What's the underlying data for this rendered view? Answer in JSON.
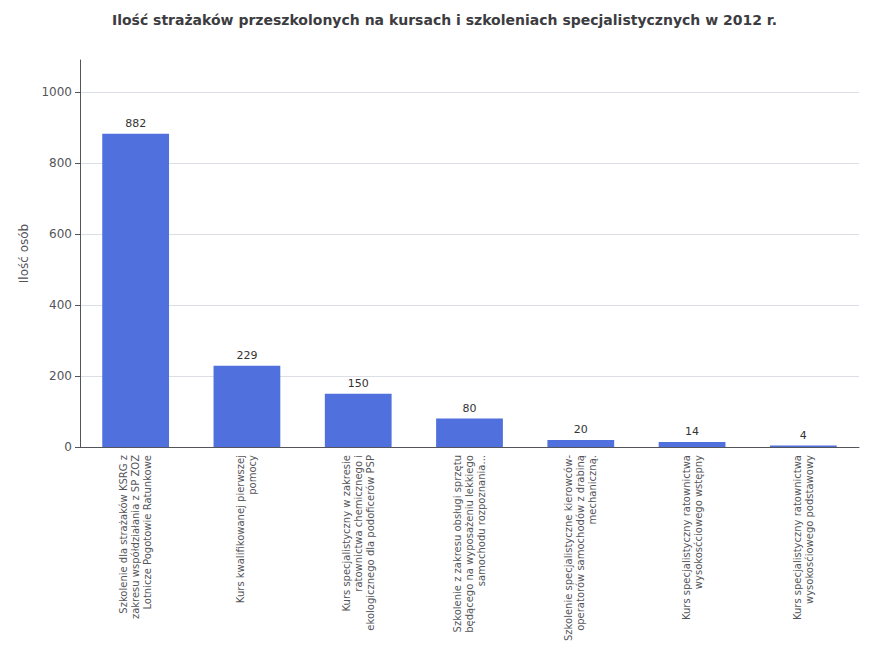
{
  "chart_data": {
    "type": "bar",
    "title": "Ilość strażaków przeszkolonych na kursach i szkoleniach specjalistycznych w 2012 r.",
    "ylabel": "Ilość osób",
    "categories": [
      "Szkolenie dla strażaków KSRG z\nzakresu współdziałania z SP ZOZ\nLotnicze Pogotowie Ratunkowe",
      "Kurs kwalifikowanej pierwszej\npomocy",
      "Kurs specjalistyczny w zakresie\nratownictwa chemicznego i\nekologicznego dla podoficerów PSP",
      "Szkolenie z zakresu obsługi sprzętu\nbędącego na wyposażeniu lekkiego\nsamochodu rozpoznania...",
      "Szkolenie specjalistyczne kierowców-\noperatorów samochodów z drabiną\nmechaniczną.",
      "Kurs specjalistyczny ratownictwa\nwysokosćciowego wstępny",
      "Kurs specjalistyczny ratownictwa\nwysokosćiowego podstawowy"
    ],
    "values": [
      882,
      229,
      150,
      80,
      20,
      14,
      4
    ],
    "ylim": [
      0,
      1090
    ],
    "yticks": [
      0,
      200,
      400,
      600,
      800,
      1000
    ],
    "grid": true,
    "data_labels": true
  }
}
